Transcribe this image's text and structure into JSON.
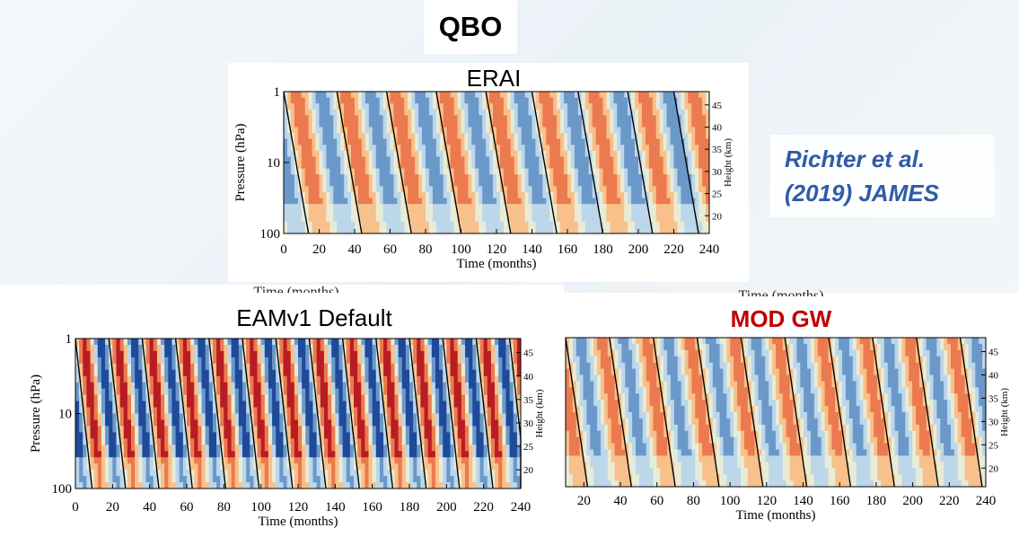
{
  "slide": {
    "title": "QBO",
    "citation_line1": "Richter et al.",
    "citation_line2": "(2019) JAMES"
  },
  "colors": {
    "westerly_strong": "#b81d23",
    "westerly_mid": "#ec7a4f",
    "westerly_weak": "#f8c08a",
    "neutral": "#e8ecd7",
    "easterly_weak": "#bcd6ea",
    "easterly_mid": "#6a99c9",
    "easterly_strong": "#1f4a9a",
    "title_red": "#c00000",
    "citation_blue": "#2e5ca7"
  },
  "chart_data": [
    {
      "type": "heatmap",
      "title": "ERAI",
      "xlabel": "Time (months)",
      "ylabel": "Pressure (hPa)",
      "y2label": "Height (km)",
      "xlim": [
        0,
        240
      ],
      "x_ticks": [
        "0",
        "20",
        "40",
        "60",
        "80",
        "100",
        "120",
        "140",
        "160",
        "180",
        "200",
        "220",
        "240"
      ],
      "y_ticks": [
        "1",
        "10",
        "100"
      ],
      "y_scale": "log",
      "y2_ticks": [
        "45",
        "40",
        "35",
        "30",
        "25",
        "20"
      ],
      "clipped_label": "Time (months)",
      "westerly_onsets_months": [
        0,
        30,
        58,
        86,
        114,
        140,
        166,
        194,
        220
      ],
      "period_months": 28,
      "amplitude": 0.7
    },
    {
      "type": "heatmap",
      "title": "EAMv1 Default",
      "xlabel": "Time (months)",
      "ylabel": "Pressure (hPa)",
      "y2label": "Height (km)",
      "xlim": [
        0,
        240
      ],
      "x_ticks": [
        "0",
        "20",
        "40",
        "60",
        "80",
        "100",
        "120",
        "140",
        "160",
        "180",
        "200",
        "220",
        "240"
      ],
      "y_ticks": [
        "1",
        "10",
        "100"
      ],
      "y_scale": "log",
      "y2_ticks": [
        "45",
        "40",
        "35",
        "30",
        "25",
        "20"
      ],
      "clipped_label": "Time (months)",
      "westerly_onsets_months": [
        0,
        18,
        36,
        54,
        72,
        90,
        108,
        126,
        144,
        162,
        180,
        198,
        216,
        234
      ],
      "period_months": 18,
      "amplitude": 1.0
    },
    {
      "type": "heatmap",
      "title": "MOD GW",
      "xlabel": "Time (months)",
      "ylabel": "",
      "y2label": "Height (km)",
      "xlim": [
        10,
        240
      ],
      "x_ticks": [
        "20",
        "40",
        "60",
        "80",
        "100",
        "120",
        "140",
        "160",
        "180",
        "200",
        "220",
        "240"
      ],
      "y_scale": "log",
      "y2_ticks": [
        "45",
        "40",
        "35",
        "30",
        "25",
        "20"
      ],
      "clipped_label": "Time (months)",
      "westerly_onsets_months": [
        10,
        34,
        58,
        82,
        106,
        130,
        154,
        178,
        202,
        226
      ],
      "period_months": 24,
      "amplitude": 0.65
    }
  ]
}
